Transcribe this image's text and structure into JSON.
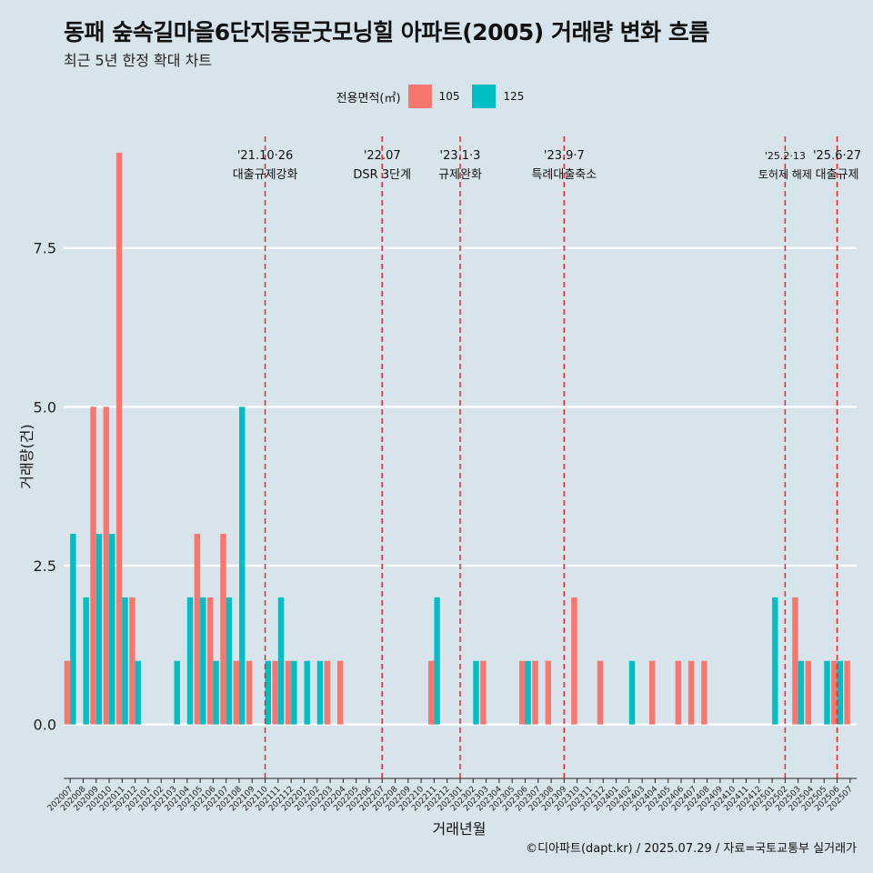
{
  "title": "동패 숲속길마을6단지동문굿모닝힐 아파트(2005) 거래량 변화 흐름",
  "subtitle": "최근 5년 한정 확대 차트",
  "legend": {
    "title": "전용면적(㎡)",
    "items": [
      {
        "label": "105",
        "color": "#f8766d"
      },
      {
        "label": "125",
        "color": "#00bfc4"
      }
    ]
  },
  "caption": "©디아파트(dapt.kr) / 2025.07.29 / 자료=국토교통부 실거래가",
  "chart_data": {
    "type": "bar",
    "categories": [
      "202007",
      "202008",
      "202009",
      "202010",
      "202011",
      "202012",
      "202101",
      "202102",
      "202103",
      "202104",
      "202105",
      "202106",
      "202107",
      "202108",
      "202109",
      "202110",
      "202111",
      "202112",
      "202201",
      "202202",
      "202203",
      "202204",
      "202205",
      "202206",
      "202207",
      "202208",
      "202209",
      "202210",
      "202211",
      "202212",
      "202301",
      "202302",
      "202303",
      "202304",
      "202305",
      "202306",
      "202307",
      "202308",
      "202309",
      "202310",
      "202311",
      "202312",
      "202401",
      "202402",
      "202403",
      "202404",
      "202405",
      "202406",
      "202407",
      "202408",
      "202409",
      "202410",
      "202411",
      "202412",
      "202501",
      "202502",
      "202503",
      "202504",
      "202505",
      "202506",
      "202507"
    ],
    "series": [
      {
        "name": "105",
        "color": "#f8766d",
        "values": [
          1,
          0,
          5,
          5,
          9,
          2,
          0,
          0,
          0,
          0,
          3,
          2,
          3,
          1,
          1,
          0,
          1,
          1,
          0,
          0,
          1,
          1,
          0,
          0,
          0,
          0,
          0,
          0,
          1,
          0,
          0,
          0,
          1,
          0,
          0,
          1,
          1,
          1,
          0,
          2,
          0,
          1,
          0,
          0,
          0,
          1,
          0,
          1,
          1,
          1,
          0,
          0,
          0,
          0,
          0,
          0,
          2,
          1,
          0,
          1,
          1
        ]
      },
      {
        "name": "125",
        "color": "#00bfc4",
        "values": [
          3,
          2,
          3,
          3,
          2,
          1,
          0,
          0,
          1,
          2,
          2,
          1,
          2,
          5,
          0,
          1,
          2,
          1,
          1,
          1,
          0,
          0,
          0,
          0,
          0,
          0,
          0,
          0,
          2,
          0,
          0,
          1,
          0,
          0,
          0,
          1,
          0,
          0,
          0,
          0,
          0,
          0,
          0,
          1,
          0,
          0,
          0,
          0,
          0,
          0,
          0,
          0,
          0,
          0,
          2,
          0,
          1,
          0,
          1,
          1,
          0
        ]
      }
    ],
    "xlabel": "거래년월",
    "ylabel": "거래량(건)",
    "ylim": [
      -0.85,
      9.4
    ],
    "yticks": [
      "0.0",
      "2.5",
      "5.0",
      "7.5"
    ],
    "events": [
      {
        "month": "202110",
        "date": "'21.10·26",
        "label": "대출규제강화"
      },
      {
        "month": "202207",
        "date": "'22.07",
        "label": "DSR 3단계"
      },
      {
        "month": "202301",
        "date": "'23.1·3",
        "label": "규제완화"
      },
      {
        "month": "202309",
        "date": "'23.9·7",
        "label": "특례대출축소"
      },
      {
        "month": "202502",
        "date": "'25.2·13",
        "label": "토허제 해제"
      },
      {
        "month": "202506",
        "date": "'25.6·27",
        "label": "대출규제"
      }
    ]
  }
}
